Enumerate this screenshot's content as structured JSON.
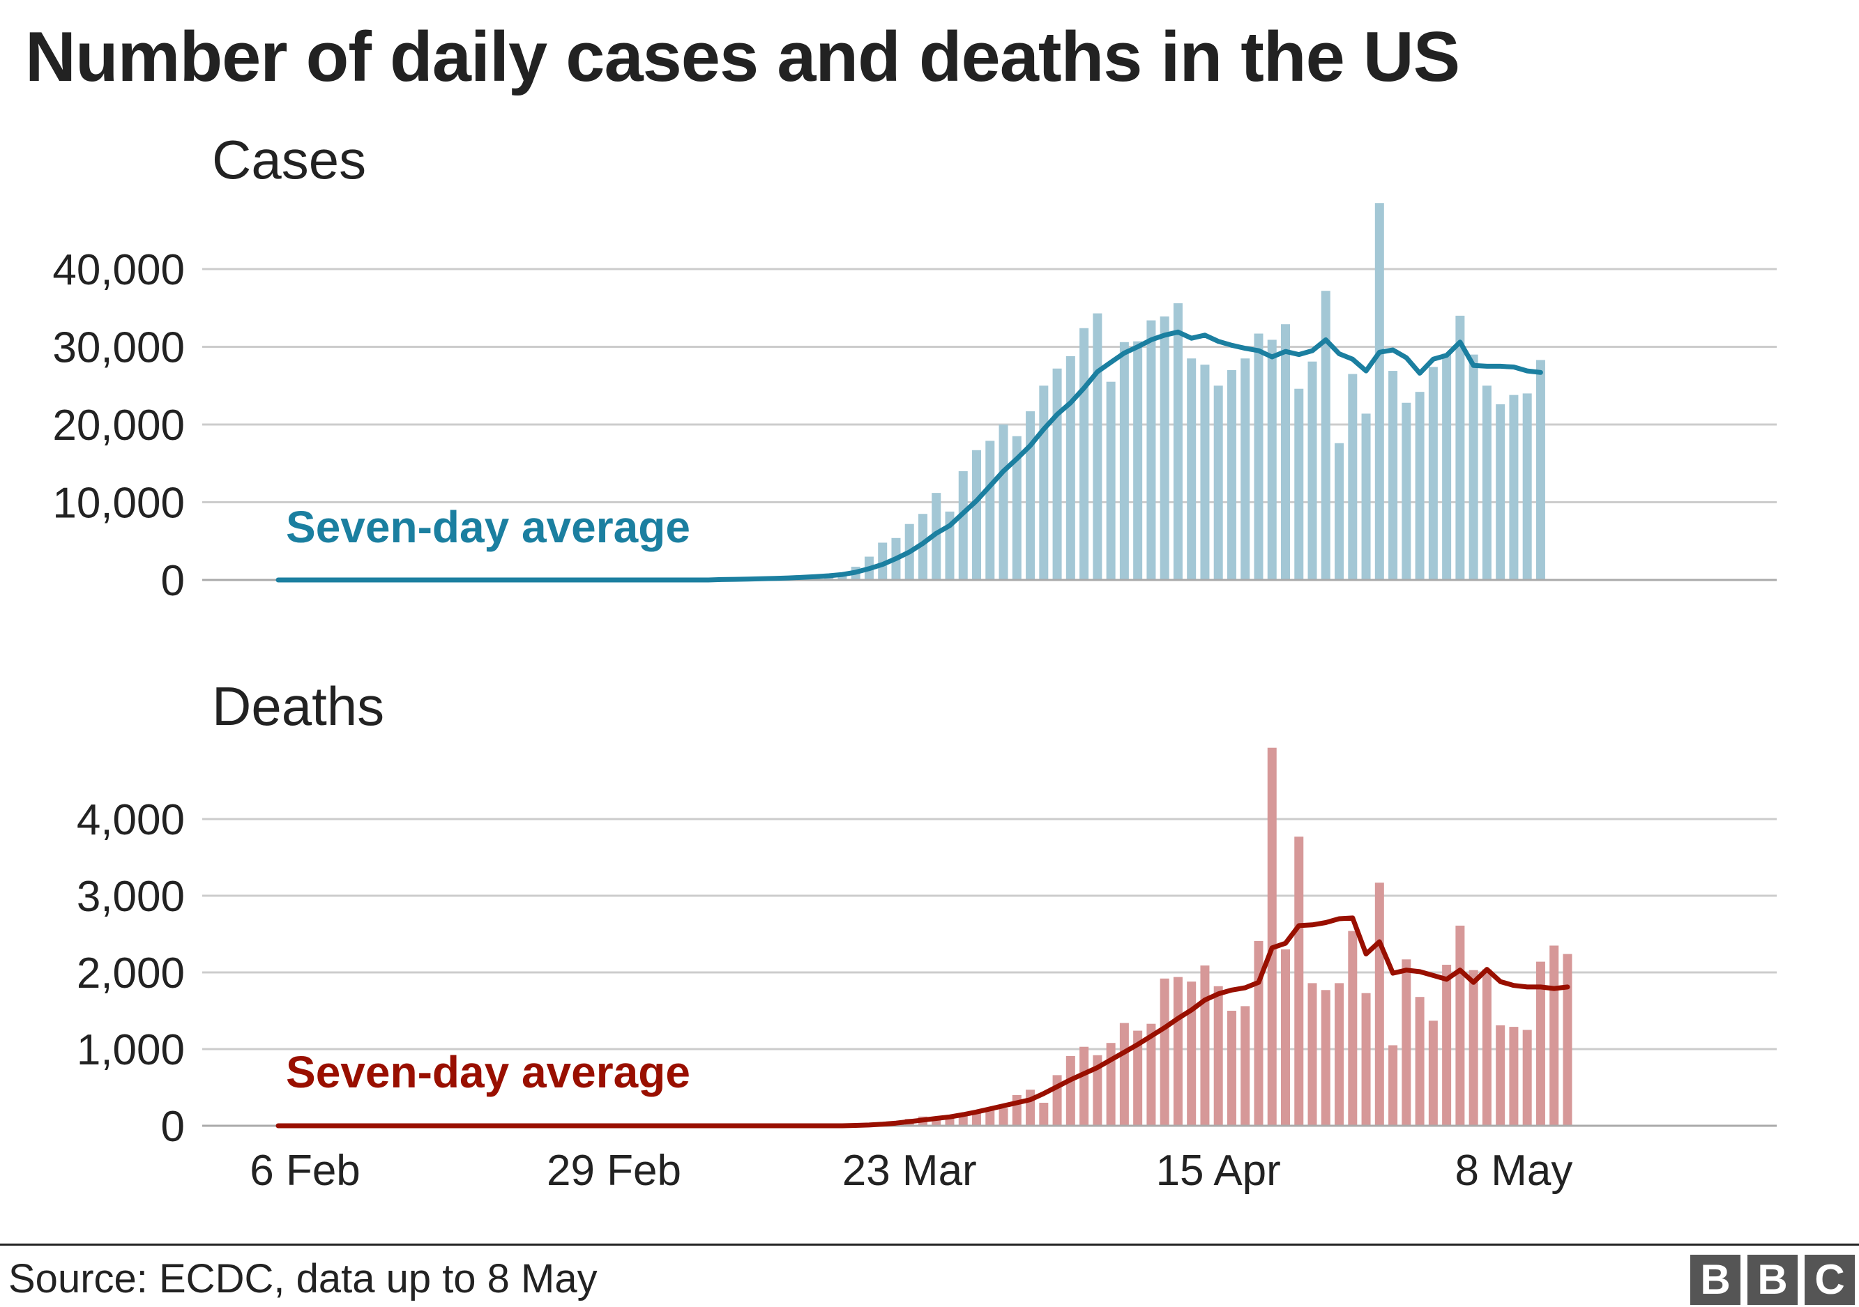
{
  "title": "Number of daily cases and deaths in the US",
  "source": "Source: ECDC, data up to 8 May",
  "logo": [
    "B",
    "B",
    "C"
  ],
  "colors": {
    "cases_bar": "#a3c7d5",
    "cases_line": "#1b7fa0",
    "deaths_bar": "#d69898",
    "deaths_line": "#990f00",
    "grid": "#cccccc",
    "axis": "#aaaaaa"
  },
  "chart_data": [
    {
      "type": "bar",
      "title": "Cases",
      "start_date": "2020-02-06",
      "x_ticks": [
        "6 Feb",
        "29 Feb",
        "23 Mar",
        "15 Apr",
        "8 May"
      ],
      "ylim": [
        0,
        45000
      ],
      "y_ticks": [
        0,
        10000,
        20000,
        30000,
        40000
      ],
      "y_tick_labels": [
        "0",
        "10,000",
        "20,000",
        "30,000",
        "40,000"
      ],
      "grid": true,
      "series": [
        {
          "name": "Daily cases",
          "values": [
            0,
            0,
            0,
            0,
            0,
            0,
            0,
            0,
            0,
            0,
            0,
            0,
            0,
            0,
            0,
            0,
            0,
            0,
            0,
            0,
            0,
            0,
            0,
            0,
            0,
            0,
            0,
            0,
            0,
            0,
            0,
            0,
            0,
            0,
            50,
            100,
            150,
            200,
            250,
            300,
            400,
            500,
            700,
            1700,
            3000,
            4800,
            5400,
            7200,
            8500,
            11200,
            8800,
            14000,
            16700,
            17900,
            20000,
            18500,
            21700,
            25000,
            27200,
            28800,
            32400,
            34300,
            25500,
            30600,
            30700,
            33400,
            33900,
            35600,
            28500,
            27700,
            25000,
            27000,
            28500,
            31700,
            30900,
            32900,
            24600,
            28100,
            37200,
            17600,
            26500,
            21400,
            48500,
            26900,
            22800,
            24200,
            27400,
            29100,
            34000,
            29000,
            25000,
            22600,
            23800,
            24000,
            28300
          ]
        },
        {
          "name": "Seven-day average",
          "label": "Seven-day average",
          "values": [
            0,
            0,
            0,
            0,
            0,
            0,
            0,
            0,
            0,
            0,
            0,
            0,
            0,
            0,
            0,
            0,
            0,
            0,
            0,
            0,
            0,
            0,
            0,
            0,
            0,
            0,
            0,
            0,
            0,
            0,
            0,
            0,
            0,
            50,
            80,
            110,
            150,
            200,
            260,
            330,
            420,
            540,
            700,
            1000,
            1450,
            2000,
            2750,
            3600,
            4700,
            6000,
            7000,
            8600,
            10200,
            12100,
            14000,
            15600,
            17300,
            19400,
            21300,
            22800,
            24700,
            26800,
            28000,
            29200,
            30000,
            30900,
            31500,
            31900,
            31100,
            31500,
            30700,
            30200,
            29800,
            29500,
            28700,
            29400,
            29000,
            29500,
            30900,
            29100,
            28400,
            26900,
            29300,
            29600,
            28600,
            26600,
            28400,
            28900,
            30600,
            27600,
            27500,
            27500,
            27400,
            26900,
            26700
          ]
        }
      ]
    },
    {
      "type": "bar",
      "title": "Deaths",
      "start_date": "2020-02-06",
      "x_ticks": [
        "6 Feb",
        "29 Feb",
        "23 Mar",
        "15 Apr",
        "8 May"
      ],
      "ylim": [
        0,
        5000
      ],
      "y_ticks": [
        0,
        1000,
        2000,
        3000,
        4000
      ],
      "y_tick_labels": [
        "0",
        "1,000",
        "2,000",
        "3,000",
        "4,000"
      ],
      "grid": true,
      "series": [
        {
          "name": "Daily deaths",
          "values": [
            0,
            0,
            0,
            0,
            0,
            0,
            0,
            0,
            0,
            0,
            0,
            0,
            0,
            0,
            0,
            0,
            0,
            0,
            0,
            0,
            0,
            0,
            0,
            0,
            0,
            0,
            0,
            0,
            0,
            0,
            0,
            0,
            0,
            0,
            0,
            0,
            0,
            0,
            0,
            0,
            0,
            0,
            0,
            5,
            10,
            20,
            50,
            90,
            120,
            80,
            100,
            140,
            200,
            200,
            230,
            400,
            470,
            300,
            660,
            910,
            1030,
            920,
            1080,
            1340,
            1240,
            1330,
            1920,
            1940,
            1880,
            2090,
            1820,
            1500,
            1560,
            2410,
            4930,
            2300,
            3770,
            1860,
            1770,
            1860,
            2540,
            1730,
            3170,
            1050,
            2170,
            1680,
            1370,
            2100,
            2610,
            2030,
            2040,
            1310,
            1290,
            1250,
            2140,
            2350,
            2240
          ]
        },
        {
          "name": "Seven-day average",
          "label": "Seven-day average",
          "values": [
            0,
            0,
            0,
            0,
            0,
            0,
            0,
            0,
            0,
            0,
            0,
            0,
            0,
            0,
            0,
            0,
            0,
            0,
            0,
            0,
            0,
            0,
            0,
            0,
            0,
            0,
            0,
            0,
            0,
            0,
            0,
            0,
            0,
            0,
            0,
            0,
            0,
            0,
            0,
            0,
            0,
            0,
            0,
            5,
            10,
            20,
            35,
            55,
            75,
            95,
            115,
            145,
            180,
            220,
            260,
            300,
            340,
            420,
            510,
            600,
            680,
            760,
            860,
            960,
            1060,
            1170,
            1280,
            1400,
            1510,
            1640,
            1720,
            1770,
            1800,
            1870,
            2320,
            2380,
            2610,
            2620,
            2650,
            2700,
            2710,
            2240,
            2400,
            1990,
            2030,
            2010,
            1960,
            1910,
            2030,
            1870,
            2040,
            1880,
            1830,
            1810,
            1810,
            1790,
            1810
          ]
        }
      ]
    }
  ]
}
